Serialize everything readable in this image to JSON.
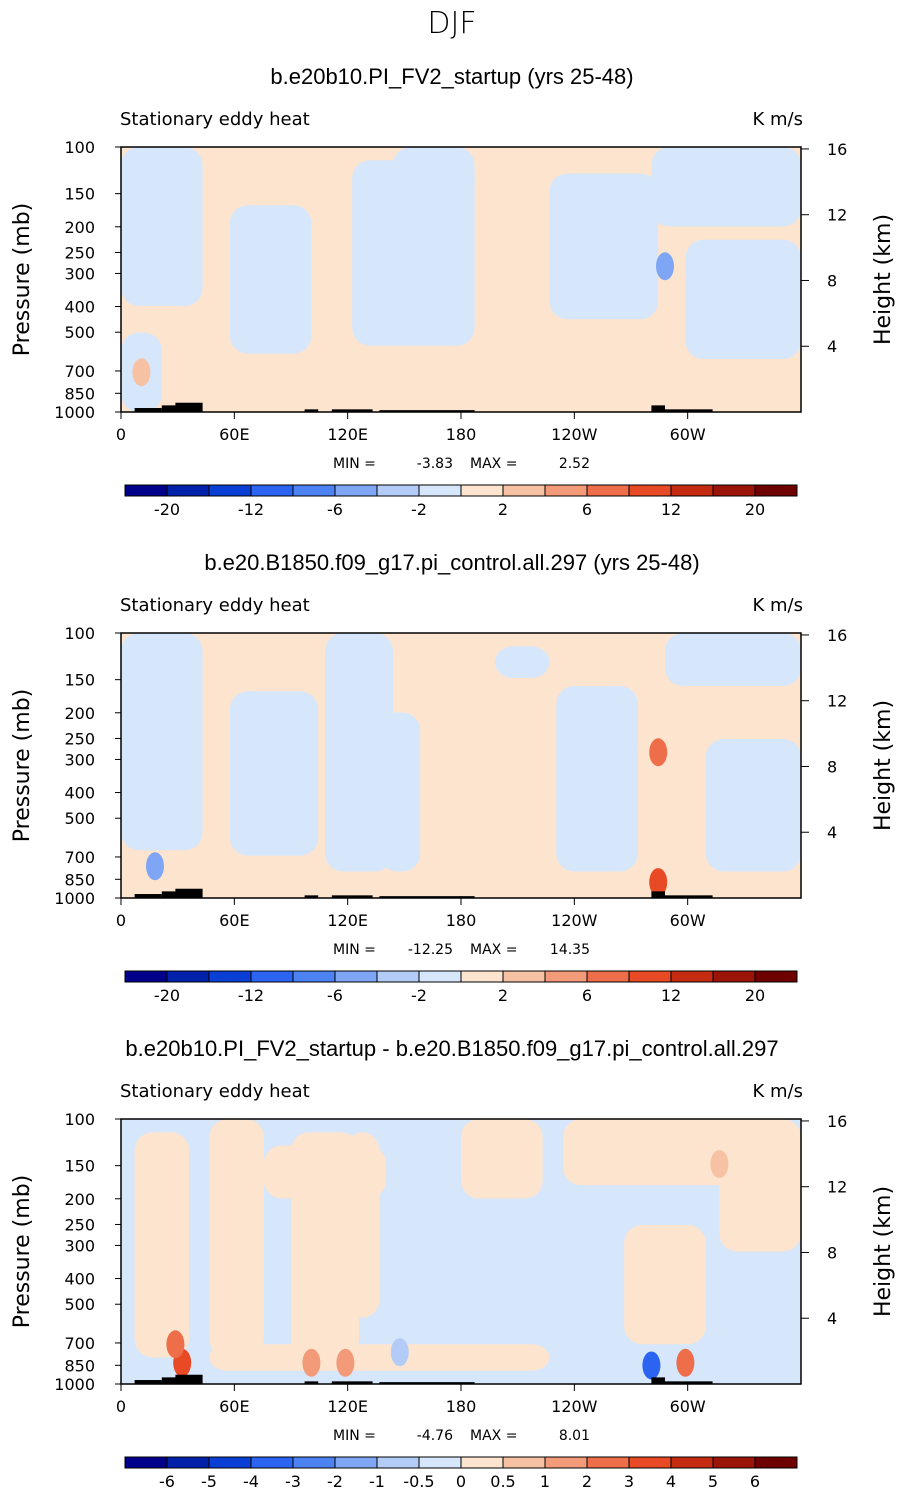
{
  "figure": {
    "season": "DJF"
  },
  "chart_data": [
    {
      "type": "contour",
      "title": "b.e20b10.PI_FV2_startup (yrs 25-48)",
      "left_label": "Stationary eddy heat",
      "units_label": "K m/s",
      "ylabel": "Pressure (mb)",
      "y2label": "Height (km)",
      "pressure_ticks": [
        "100",
        "150",
        "200",
        "250",
        "300",
        "400",
        "500",
        "700",
        "850",
        "1000"
      ],
      "height_ticks": [
        "16",
        "12",
        "8",
        "4"
      ],
      "lon_ticks": [
        "0",
        "60E",
        "120E",
        "180",
        "120W",
        "60W"
      ],
      "stats": {
        "min_label": "MIN =",
        "min": "-3.83",
        "max_label": "MAX =",
        "max": "2.52"
      },
      "colorbar_labels": [
        "-20",
        "-12",
        "-6",
        "-2",
        "2",
        "6",
        "12",
        "20"
      ]
    },
    {
      "type": "contour",
      "title": "b.e20.B1850.f09_g17.pi_control.all.297 (yrs 25-48)",
      "left_label": "Stationary eddy heat",
      "units_label": "K m/s",
      "ylabel": "Pressure (mb)",
      "y2label": "Height (km)",
      "pressure_ticks": [
        "100",
        "150",
        "200",
        "250",
        "300",
        "400",
        "500",
        "700",
        "850",
        "1000"
      ],
      "height_ticks": [
        "16",
        "12",
        "8",
        "4"
      ],
      "lon_ticks": [
        "0",
        "60E",
        "120E",
        "180",
        "120W",
        "60W"
      ],
      "stats": {
        "min_label": "MIN =",
        "min": "-12.25",
        "max_label": "MAX =",
        "max": "14.35"
      },
      "colorbar_labels": [
        "-20",
        "-12",
        "-6",
        "-2",
        "2",
        "6",
        "12",
        "20"
      ]
    },
    {
      "type": "contour",
      "title": "b.e20b10.PI_FV2_startup - b.e20.B1850.f09_g17.pi_control.all.297",
      "left_label": "Stationary eddy heat",
      "units_label": "K m/s",
      "ylabel": "Pressure (mb)",
      "y2label": "Height (km)",
      "pressure_ticks": [
        "100",
        "150",
        "200",
        "250",
        "300",
        "400",
        "500",
        "700",
        "850",
        "1000"
      ],
      "height_ticks": [
        "16",
        "12",
        "8",
        "4"
      ],
      "lon_ticks": [
        "0",
        "60E",
        "120E",
        "180",
        "120W",
        "60W"
      ],
      "stats": {
        "min_label": "MIN =",
        "min": "-4.76",
        "max_label": "MAX =",
        "max": "8.01"
      },
      "colorbar_labels": [
        "-6",
        "-5",
        "-4",
        "-3",
        "-2",
        "-1",
        "-0.5",
        "0",
        "0.5",
        "1",
        "2",
        "3",
        "4",
        "5",
        "6"
      ]
    }
  ],
  "colors": {
    "scale": [
      "#00008b",
      "#0022aa",
      "#0a3fd6",
      "#2a64f0",
      "#4d82f2",
      "#7fa6f5",
      "#b3ccf7",
      "#d6e6fb",
      "#fde4cf",
      "#f7c2a4",
      "#f39a78",
      "#ee6e4a",
      "#e84a25",
      "#c42b10",
      "#9b1408",
      "#6e0000"
    ],
    "pos_fill": "#fde4cf",
    "neg_fill": "#d6e6fb"
  }
}
